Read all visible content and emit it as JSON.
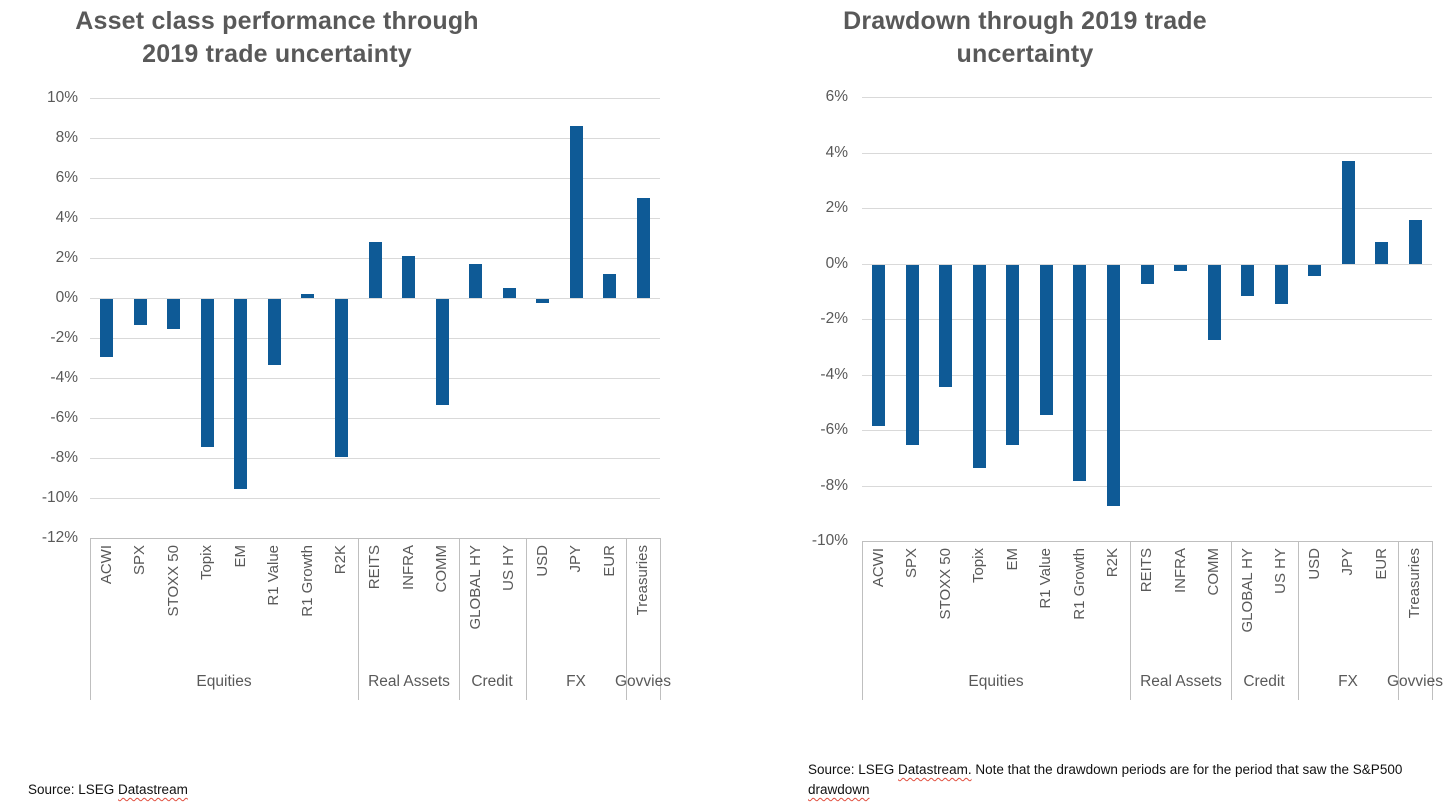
{
  "page_background": "#ffffff",
  "chart_data": [
    {
      "type": "bar",
      "title": "Asset class performance through 2019 trade uncertainty",
      "title_lines": [
        "Asset class performance through",
        "2019 trade uncertainty"
      ],
      "categories": [
        "ACWI",
        "SPX",
        "STOXX 50",
        "Topix",
        "EM",
        "R1 Value",
        "R1 Growth",
        "R2K",
        "REITS",
        "INFRA",
        "COMM",
        "GLOBAL HY",
        "US HY",
        "USD",
        "JPY",
        "EUR",
        "Treasuries"
      ],
      "values": [
        -2.9,
        -1.3,
        -1.5,
        -7.4,
        -9.5,
        -3.3,
        0.2,
        -7.9,
        2.8,
        2.1,
        -5.3,
        1.7,
        0.5,
        -0.2,
        8.6,
        1.2,
        5.0
      ],
      "groups": [
        {
          "label": "Equities",
          "count": 8
        },
        {
          "label": "Real Assets",
          "count": 3
        },
        {
          "label": "Credit",
          "count": 2
        },
        {
          "label": "FX",
          "count": 3
        },
        {
          "label": "Govvies",
          "count": 1
        }
      ],
      "ylim": [
        -12,
        10
      ],
      "ytick_step": 2,
      "ytick_suffix": "%",
      "grid": true,
      "legend": "none",
      "bar_color": "#0e5a96",
      "source": "Source: LSEG Datastream",
      "source_segments": [
        {
          "text": "Source: LSEG ",
          "flagged": false
        },
        {
          "text": "Datastream",
          "flagged": true
        }
      ]
    },
    {
      "type": "bar",
      "title": "Drawdown through 2019 trade uncertainty",
      "title_lines": [
        "Drawdown through 2019 trade",
        "uncertainty"
      ],
      "categories": [
        "ACWI",
        "SPX",
        "STOXX 50",
        "Topix",
        "EM",
        "R1 Value",
        "R1 Growth",
        "R2K",
        "REITS",
        "INFRA",
        "COMM",
        "GLOBAL HY",
        "US HY",
        "USD",
        "JPY",
        "EUR",
        "Treasuries"
      ],
      "values": [
        -5.8,
        -6.5,
        -4.4,
        -7.3,
        -6.5,
        -5.4,
        -7.8,
        -8.7,
        -0.7,
        -0.2,
        -2.7,
        -1.1,
        -1.4,
        -0.4,
        3.7,
        0.8,
        1.6
      ],
      "groups": [
        {
          "label": "Equities",
          "count": 8
        },
        {
          "label": "Real Assets",
          "count": 3
        },
        {
          "label": "Credit",
          "count": 2
        },
        {
          "label": "FX",
          "count": 3
        },
        {
          "label": "Govvies",
          "count": 1
        }
      ],
      "ylim": [
        -10,
        6
      ],
      "ytick_step": 2,
      "ytick_suffix": "%",
      "grid": true,
      "legend": "none",
      "bar_color": "#0e5a96",
      "source": "Source: LSEG Datastream. Note that the drawdown periods are for the period that saw the S&P500 drawdown",
      "source_segments": [
        {
          "text": "Source: LSEG ",
          "flagged": false
        },
        {
          "text": "Datastream.",
          "flagged": true
        },
        {
          "text": " Note that the drawdown periods are for the period that saw the S&P500 ",
          "flagged": false
        },
        {
          "text": "drawdown",
          "flagged": true
        }
      ]
    }
  ]
}
